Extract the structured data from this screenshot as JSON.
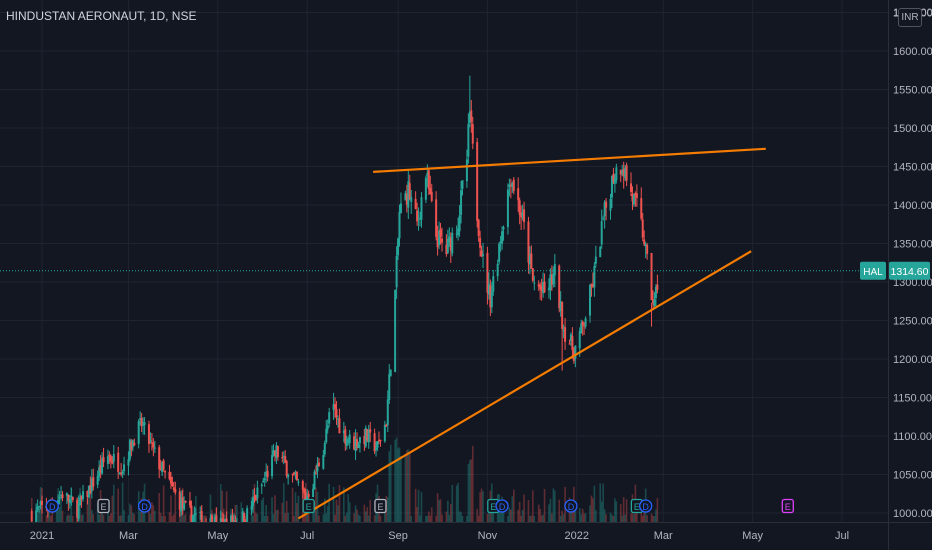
{
  "header": {
    "title": "HINDUSTAN AERONAUT, 1D, NSE",
    "currency": "INR"
  },
  "colors": {
    "background": "#131722",
    "up": "#26a69a",
    "down": "#ef5350",
    "trendline": "#f57c00",
    "price_tag": "#26a69a",
    "text": "#b2b5be"
  },
  "chart_data": {
    "type": "candlestick",
    "symbol": "HAL",
    "last_price": "1314.60",
    "last_price_value": 1314.6,
    "ylim": [
      990,
      1650
    ],
    "yticks": [
      1000,
      1050,
      1100,
      1150,
      1200,
      1250,
      1300,
      1350,
      1400,
      1450,
      1500,
      1550,
      1600,
      1650
    ],
    "ytick_labels": [
      "1000.00",
      "1050.00",
      "1100.00",
      "1150.00",
      "1200.00",
      "1250.00",
      "1300.00",
      "1350.00",
      "1400.00",
      "1450.00",
      "1500.00",
      "1550.00",
      "1600.00",
      "1650.00"
    ],
    "xticks": [
      {
        "label": "2021",
        "date": "2021-01-01"
      },
      {
        "label": "Mar",
        "date": "2021-03-01"
      },
      {
        "label": "May",
        "date": "2021-05-01"
      },
      {
        "label": "Jul",
        "date": "2021-07-01"
      },
      {
        "label": "Sep",
        "date": "2021-09-01"
      },
      {
        "label": "Nov",
        "date": "2021-11-01"
      },
      {
        "label": "2022",
        "date": "2022-01-01"
      },
      {
        "label": "Mar",
        "date": "2022-03-01"
      },
      {
        "label": "May",
        "date": "2022-05-01"
      },
      {
        "label": "Jul",
        "date": "2022-07-01"
      }
    ],
    "price_path": [
      [
        "2020-12-25",
        1000
      ],
      [
        "2021-01-05",
        1010
      ],
      [
        "2021-01-15",
        1025
      ],
      [
        "2021-01-25",
        1005
      ],
      [
        "2021-02-05",
        1040
      ],
      [
        "2021-02-15",
        1075
      ],
      [
        "2021-02-25",
        1060
      ],
      [
        "2021-03-05",
        1100
      ],
      [
        "2021-03-10",
        1115
      ],
      [
        "2021-03-18",
        1080
      ],
      [
        "2021-03-28",
        1040
      ],
      [
        "2021-04-08",
        1005
      ],
      [
        "2021-04-20",
        990
      ],
      [
        "2021-05-05",
        985
      ],
      [
        "2021-05-20",
        995
      ],
      [
        "2021-06-01",
        1040
      ],
      [
        "2021-06-10",
        1080
      ],
      [
        "2021-06-20",
        1050
      ],
      [
        "2021-06-30",
        1020
      ],
      [
        "2021-07-05",
        1040
      ],
      [
        "2021-07-12",
        1085
      ],
      [
        "2021-07-18",
        1140
      ],
      [
        "2021-07-25",
        1105
      ],
      [
        "2021-08-01",
        1090
      ],
      [
        "2021-08-10",
        1100
      ],
      [
        "2021-08-18",
        1085
      ],
      [
        "2021-08-24",
        1120
      ],
      [
        "2021-08-29",
        1250
      ],
      [
        "2021-09-02",
        1390
      ],
      [
        "2021-09-08",
        1420
      ],
      [
        "2021-09-14",
        1375
      ],
      [
        "2021-09-20",
        1440
      ],
      [
        "2021-09-27",
        1360
      ],
      [
        "2021-10-04",
        1340
      ],
      [
        "2021-10-12",
        1380
      ],
      [
        "2021-10-18",
        1460
      ],
      [
        "2021-10-20",
        1520
      ],
      [
        "2021-10-25",
        1390
      ],
      [
        "2021-10-30",
        1310
      ],
      [
        "2021-11-03",
        1280
      ],
      [
        "2021-11-10",
        1360
      ],
      [
        "2021-11-17",
        1440
      ],
      [
        "2021-11-25",
        1380
      ],
      [
        "2021-12-02",
        1300
      ],
      [
        "2021-12-10",
        1285
      ],
      [
        "2021-12-17",
        1310
      ],
      [
        "2021-12-23",
        1240
      ],
      [
        "2021-12-30",
        1210
      ],
      [
        "2022-01-05",
        1240
      ],
      [
        "2022-01-12",
        1300
      ],
      [
        "2022-01-19",
        1380
      ],
      [
        "2022-01-26",
        1440
      ],
      [
        "2022-02-01",
        1455
      ],
      [
        "2022-02-07",
        1415
      ],
      [
        "2022-02-12",
        1390
      ],
      [
        "2022-02-16",
        1355
      ],
      [
        "2022-02-20",
        1290
      ],
      [
        "2022-02-23",
        1270
      ],
      [
        "2022-02-26",
        1314.6
      ]
    ],
    "annotations": [
      {
        "label": "D",
        "date": "2021-01-08",
        "color": "#2962ff"
      },
      {
        "label": "E",
        "date": "2021-02-12",
        "color": "#b2b5be"
      },
      {
        "label": "D",
        "date": "2021-03-12",
        "color": "#2962ff"
      },
      {
        "label": "E",
        "date": "2021-07-02",
        "color": "#26a69a"
      },
      {
        "label": "E",
        "date": "2021-08-20",
        "color": "#b2b5be"
      },
      {
        "label": "E",
        "date": "2021-11-05",
        "color": "#26a69a"
      },
      {
        "label": "D",
        "date": "2021-11-11",
        "color": "#2962ff"
      },
      {
        "label": "D",
        "date": "2021-12-28",
        "color": "#2962ff"
      },
      {
        "label": "E",
        "date": "2022-02-11",
        "color": "#26a69a"
      },
      {
        "label": "D",
        "date": "2022-02-17",
        "color": "#2962ff"
      },
      {
        "label": "E",
        "date": "2022-05-25",
        "color": "#e040fb"
      }
    ],
    "trendlines": [
      {
        "name": "resistance",
        "start": [
          "2021-08-15",
          1443
        ],
        "end": [
          "2022-05-10",
          1473
        ]
      },
      {
        "name": "support",
        "start": [
          "2021-06-25",
          993
        ],
        "end": [
          "2022-04-30",
          1340
        ]
      }
    ]
  }
}
